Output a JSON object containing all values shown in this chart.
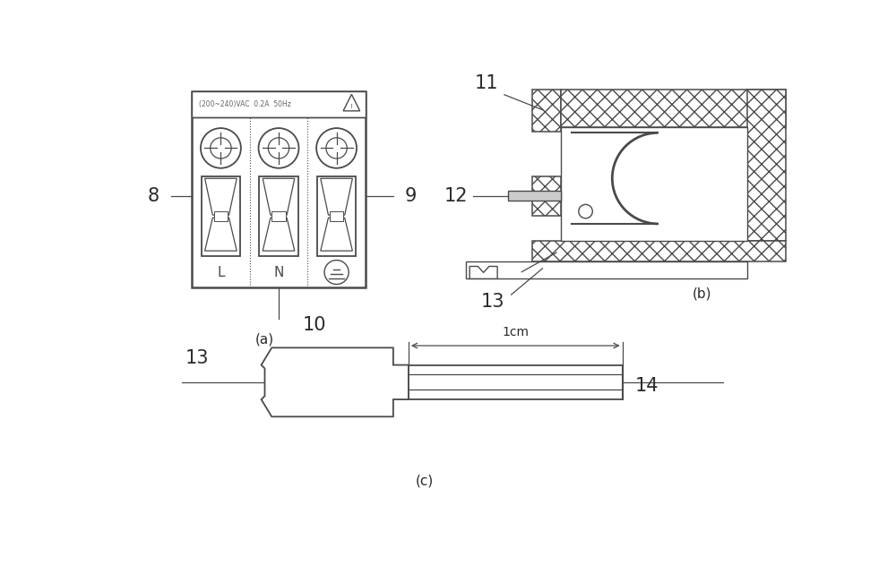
{
  "background_color": "#ffffff",
  "line_color": "#4a4a4a",
  "label_color": "#2a2a2a",
  "fig_width": 10.0,
  "fig_height": 6.31,
  "panel_a_label": "(a)",
  "panel_b_label": "(b)",
  "panel_c_label": "(c)",
  "header_text": "(200~240)VAC  0.2A  50Hz",
  "dim_text": "1cm",
  "numbers": {
    "n8": "8",
    "n9": "9",
    "n10": "10",
    "n11": "11",
    "n12": "12",
    "n13": "13",
    "n14": "14"
  }
}
